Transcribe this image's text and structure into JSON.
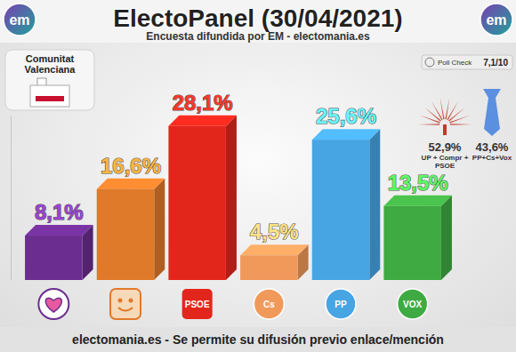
{
  "chart_data": {
    "type": "bar",
    "title": "ElectoPanel (30/04/2021)",
    "subtitle": "Encuesta difundida por EM - electomania.es",
    "region": "Comunitat Valenciana",
    "logo": "em",
    "footer": "electomania.es - Se permite su difusión previo enlace/mención",
    "poll_check": {
      "label": "Poll Check",
      "score": "7,1/10"
    },
    "blocs": [
      {
        "value": "52,9%",
        "label": "UP + Compr + PSOE",
        "color": "#c0392b"
      },
      {
        "value": "43,6%",
        "label": "PP+Cs+Vox",
        "color": "#5b8fe0"
      }
    ],
    "categories": [
      null,
      null,
      "PSOE",
      "Cs",
      "PP",
      "VOX"
    ],
    "values": [
      8.1,
      16.6,
      28.1,
      4.5,
      25.6,
      13.5
    ],
    "value_labels": [
      "8,1%",
      "16,6%",
      "28,1%",
      "4,5%",
      "25,6%",
      "13,5%"
    ],
    "colors": [
      "#6b2d8f",
      "#e07a2b",
      "#e3261c",
      "#f0995a",
      "#47a5e4",
      "#3faa42"
    ],
    "ylim": [
      0,
      30
    ],
    "data_labels": true,
    "tick_labels": "x"
  }
}
